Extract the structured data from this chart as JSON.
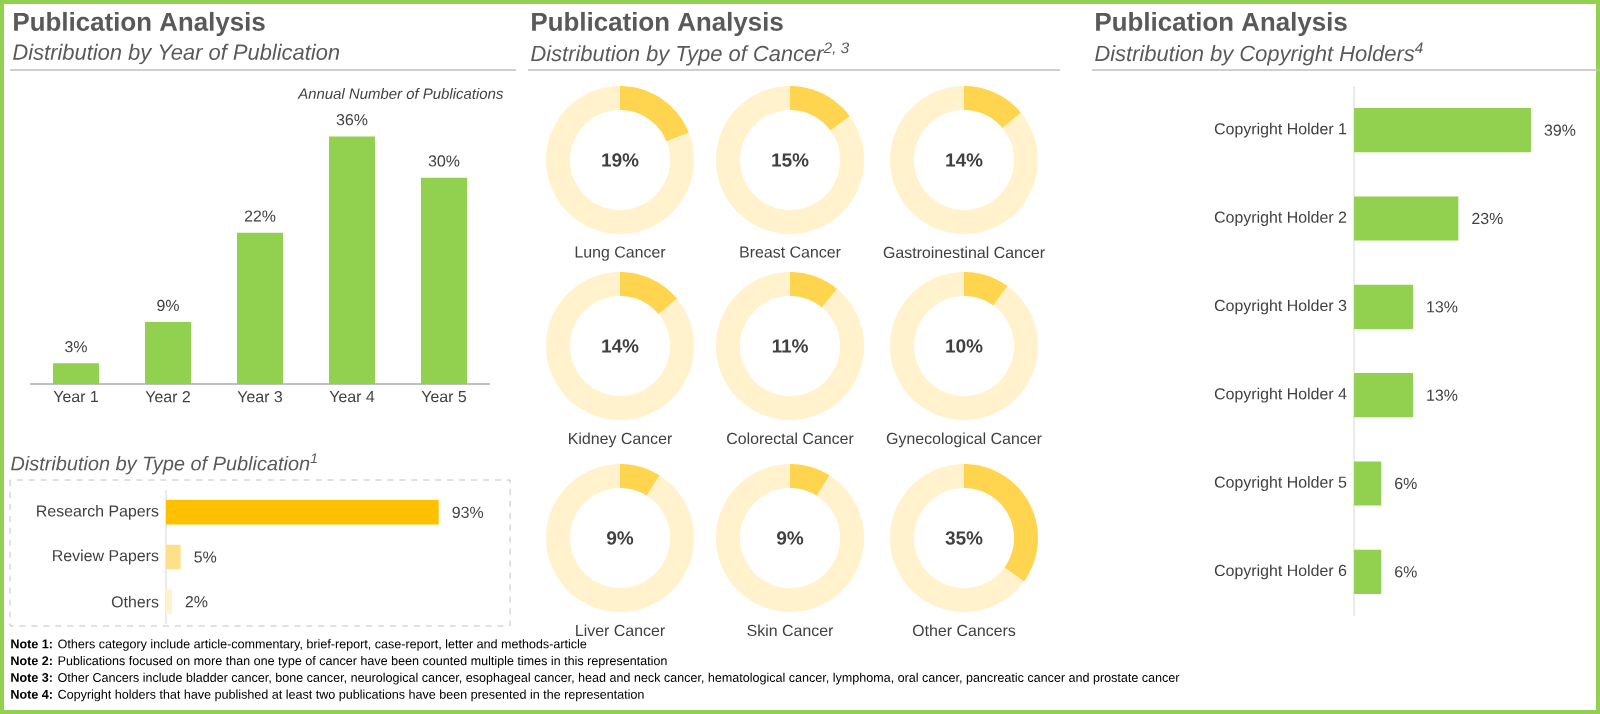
{
  "chart_data": [
    {
      "type": "bar",
      "title": "Publication Analysis",
      "subtitle": "Distribution by Year of Publication",
      "ylabel": "Annual Number of Publications",
      "categories": [
        "Year 1",
        "Year 2",
        "Year 3",
        "Year 4",
        "Year 5"
      ],
      "values": [
        3,
        9,
        22,
        36,
        30
      ],
      "value_labels": [
        "3%",
        "9%",
        "22%",
        "36%",
        "30%"
      ],
      "color": "#92d050",
      "tick_labels": "x"
    },
    {
      "type": "bar",
      "orientation": "horizontal",
      "title": "Distribution by Type of Publication$^{1}$",
      "categories": [
        "Research Papers",
        "Review Papers",
        "Others"
      ],
      "values": [
        93,
        5,
        2
      ],
      "value_labels": [
        "93%",
        "5%",
        "2%"
      ],
      "colors": [
        "#ffc000",
        "#ffe08a",
        "#fff2cc"
      ],
      "tick_labels": "y"
    },
    {
      "type": "other",
      "title": "Publication Analysis",
      "subtitle": "Distribution by Type of Cancer$^{2, 3}$"
    },
    {
      "type": "donut",
      "title": "Lung Cancer",
      "categories": [
        null,
        null
      ],
      "values": [
        19,
        81
      ],
      "annotations": [
        "19%"
      ],
      "colors": [
        "#ffd54f",
        "#fff2cc"
      ]
    },
    {
      "type": "donut",
      "title": "Breast Cancer",
      "categories": [
        null,
        null
      ],
      "values": [
        15,
        85
      ],
      "annotations": [
        "15%"
      ],
      "colors": [
        "#ffd54f",
        "#fff2cc"
      ]
    },
    {
      "type": "donut",
      "title": "Gastroinestinal Cancer",
      "categories": [
        null,
        null
      ],
      "values": [
        14,
        86
      ],
      "annotations": [
        "14%"
      ],
      "colors": [
        "#ffd54f",
        "#fff2cc"
      ]
    },
    {
      "type": "donut",
      "title": "Kidney Cancer",
      "categories": [
        null,
        null
      ],
      "values": [
        14,
        86
      ],
      "annotations": [
        "14%"
      ],
      "colors": [
        "#ffd54f",
        "#fff2cc"
      ]
    },
    {
      "type": "donut",
      "title": "Colorectal Cancer",
      "categories": [
        null,
        null
      ],
      "values": [
        11,
        89
      ],
      "annotations": [
        "11%"
      ],
      "colors": [
        "#ffd54f",
        "#fff2cc"
      ]
    },
    {
      "type": "donut",
      "title": "Gynecological Cancer",
      "categories": [
        null,
        null
      ],
      "values": [
        10,
        90
      ],
      "annotations": [
        "10%"
      ],
      "colors": [
        "#ffd54f",
        "#fff2cc"
      ]
    },
    {
      "type": "donut",
      "title": "Liver Cancer",
      "categories": [
        null,
        null
      ],
      "values": [
        9,
        91
      ],
      "annotations": [
        "9%"
      ],
      "colors": [
        "#ffd54f",
        "#fff2cc"
      ]
    },
    {
      "type": "donut",
      "title": "Skin Cancer",
      "categories": [
        null,
        null
      ],
      "values": [
        9,
        91
      ],
      "annotations": [
        "9%"
      ],
      "colors": [
        "#ffd54f",
        "#fff2cc"
      ]
    },
    {
      "type": "donut",
      "title": "Other Cancers",
      "categories": [
        null,
        null
      ],
      "values": [
        35,
        65
      ],
      "annotations": [
        "35%"
      ],
      "colors": [
        "#ffd54f",
        "#fff2cc"
      ]
    },
    {
      "type": "bar",
      "orientation": "horizontal",
      "title": "Publication Analysis",
      "subtitle": "Distribution by Copyright Holders$^{4}$",
      "categories": [
        "Copyright Holder 1",
        "Copyright Holder 2",
        "Copyright Holder 3",
        "Copyright Holder 4",
        "Copyright Holder 5",
        "Copyright Holder 6"
      ],
      "values": [
        39,
        23,
        13,
        13,
        6,
        6
      ],
      "value_labels": [
        "39%",
        "23%",
        "13%",
        "13%",
        "6%",
        "6%"
      ],
      "color": "#92d050",
      "tick_labels": "y"
    },
    {
      "type": "other",
      "annotations": [
        "**Note 1:** Others category include article-commentary, brief-report, case-report, letter and methods-article",
        "**Note 2:** Publications focused on more than one type of cancer have been counted multiple times in this representation",
        "**Note 3:** Other Cancers include bladder cancer, bone cancer, neurological cancer, esophageal cancer, head and neck cancer, hematological cancer, lymphoma, oral cancer, pancreatic cancer and prostate cancer",
        "**Note 4:** Copyright holders that have published at least two publications have been presented in the representation"
      ]
    }
  ]
}
